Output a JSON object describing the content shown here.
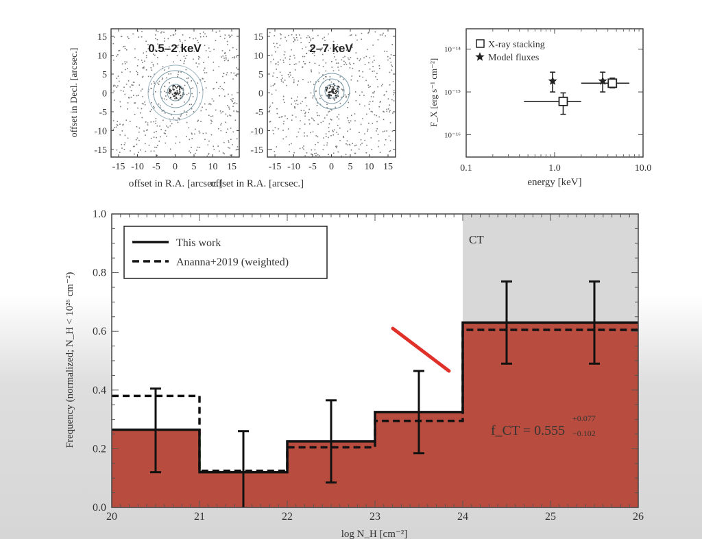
{
  "chart_data": [
    {
      "type": "scatter",
      "title": "0.5–2 keV",
      "xlabel": "offset in R.A. [arcsec.]",
      "ylabel": "offset in Decl. [arcsec.]",
      "xlim": [
        -17,
        17
      ],
      "ylim": [
        -17,
        17
      ],
      "xticks": [
        "-15",
        "-10",
        "-5",
        "0",
        "5",
        "10",
        "15"
      ],
      "yticks": [
        "15",
        "10",
        "5",
        "0",
        "-5",
        "-10",
        "-15"
      ]
    },
    {
      "type": "scatter",
      "title": "2–7 keV",
      "xlabel": "offset in R.A. [arcsec.]",
      "xlim": [
        -17,
        17
      ],
      "ylim": [
        -17,
        17
      ],
      "xticks": [
        "-15",
        "-10",
        "-5",
        "0",
        "5",
        "10",
        "15"
      ],
      "yticks": [
        "15",
        "10",
        "5",
        "0",
        "-5",
        "-10",
        "-15"
      ]
    },
    {
      "type": "scatter",
      "xlabel": "energy [keV]",
      "ylabel": "F_X [erg s⁻¹ cm⁻²]",
      "xscale": "log",
      "yscale": "log",
      "xlim": [
        0.1,
        10
      ],
      "ylim": [
        3e-17,
        3e-14
      ],
      "xticks": [
        "0.1",
        "1.0",
        "10.0"
      ],
      "yticks": [
        "10⁻¹⁴",
        "10⁻¹⁵",
        "10⁻¹⁶"
      ],
      "legend": [
        "X-ray stacking",
        "Model fluxes"
      ],
      "legend_position": "top-left",
      "series": [
        {
          "name": "X-ray stacking",
          "marker": "open-square",
          "points": [
            {
              "x": 1.25,
              "y": 6e-16,
              "xerr": [
                0.45,
                2.0
              ],
              "yerr": [
                3e-16,
                9.5e-16
              ]
            },
            {
              "x": 4.5,
              "y": 1.6e-15,
              "xerr": [
                2.0,
                7.0
              ],
              "yerr": [
                1.25e-15,
                2.1e-15
              ]
            }
          ]
        },
        {
          "name": "Model fluxes",
          "marker": "filled-star",
          "points": [
            {
              "x": 0.95,
              "y": 1.8e-15,
              "yerr": [
                1e-15,
                2.9e-15
              ]
            },
            {
              "x": 3.5,
              "y": 1.8e-15,
              "yerr": [
                1e-15,
                2.9e-15
              ]
            }
          ]
        }
      ]
    },
    {
      "type": "bar",
      "histogram": true,
      "xlabel": "log N_H [cm⁻²]",
      "ylabel": "Frequency (normalized; N_H < 10²⁶ cm⁻²)",
      "xlim": [
        20,
        26
      ],
      "ylim": [
        0,
        1.0
      ],
      "xticks": [
        "20",
        "21",
        "22",
        "23",
        "24",
        "25",
        "26"
      ],
      "yticks": [
        "0.0",
        "0.2",
        "0.4",
        "0.6",
        "0.8",
        "1.0"
      ],
      "bin_edges": [
        20,
        21,
        22,
        23,
        24,
        25,
        26
      ],
      "legend": [
        "This work",
        "Ananna+2019 (weighted)"
      ],
      "legend_position": "top-left",
      "shaded_region": {
        "label": "CT",
        "xmin": 24,
        "xmax": 26
      },
      "annotation": {
        "base": "f_CT = 0.555",
        "sup": "+0.077",
        "sub": "−0.102"
      },
      "series": [
        {
          "name": "This work",
          "style": "solid",
          "values": [
            0.265,
            0.12,
            0.225,
            0.325,
            0.63,
            0.63
          ],
          "errors": [
            [
              0.12,
              0.405
            ],
            [
              0.0,
              0.26
            ],
            [
              0.085,
              0.365
            ],
            [
              0.185,
              0.465
            ],
            [
              0.49,
              0.77
            ],
            [
              0.49,
              0.77
            ]
          ]
        },
        {
          "name": "Ananna+2019 (weighted)",
          "style": "dashed",
          "values": [
            0.38,
            0.125,
            0.205,
            0.295,
            0.605,
            0.605
          ]
        }
      ]
    }
  ]
}
